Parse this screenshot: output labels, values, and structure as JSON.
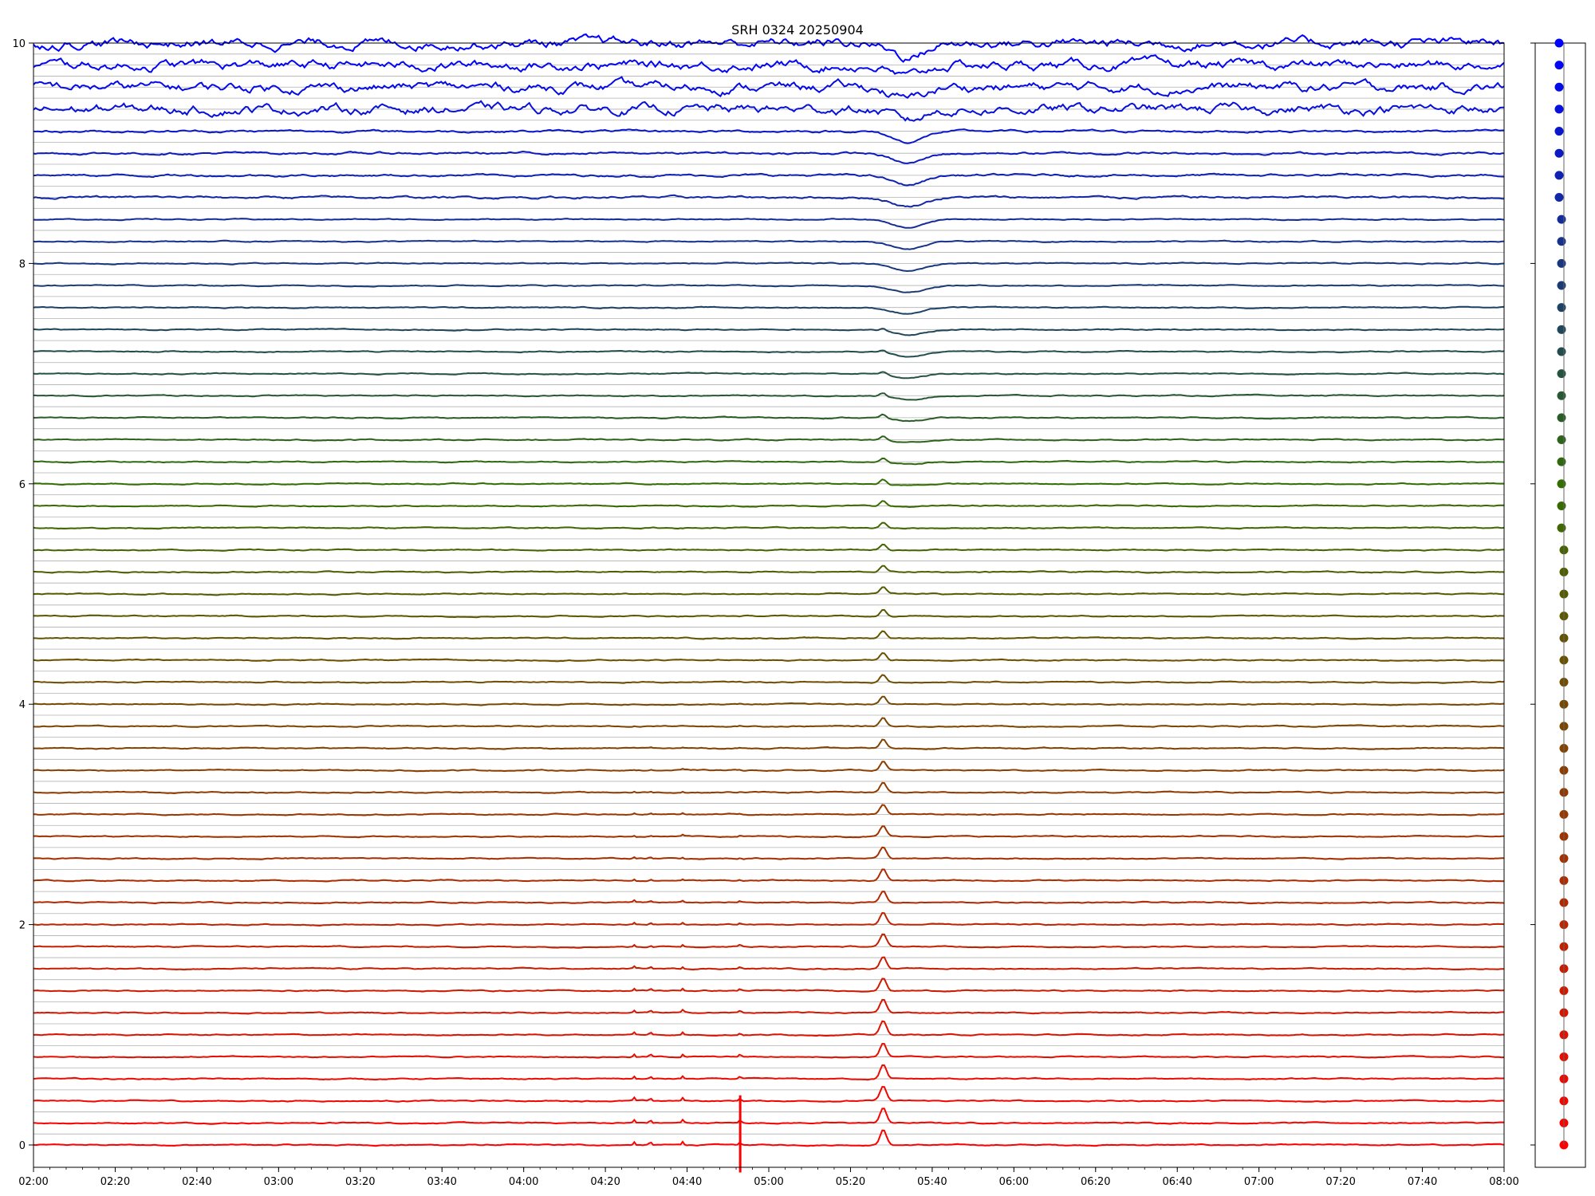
{
  "chart_data": {
    "type": "line",
    "title": "SRH 0324 20250904",
    "xlabel": "",
    "ylabel": "",
    "x_tick_labels": [
      "02:00",
      "02:20",
      "02:40",
      "03:00",
      "03:20",
      "03:40",
      "04:00",
      "04:20",
      "04:40",
      "05:00",
      "05:20",
      "05:40",
      "06:00",
      "06:20",
      "06:40",
      "07:00",
      "07:20",
      "07:40",
      "08:00"
    ],
    "x_range_minutes": [
      120,
      480
    ],
    "y_tick_labels": [
      "0",
      "2",
      "4",
      "6",
      "8",
      "10"
    ],
    "ylim": [
      0,
      10
    ],
    "n_traces": 51,
    "trace_spacing": 0.2,
    "grid": "horizontal baseline per trace",
    "legend": "right-side color strip",
    "colors": {
      "top": "#0000ff",
      "bottom": "#ff0000",
      "grid": "#b0b0b0"
    },
    "features": {
      "event_peak_time": "05:28",
      "dip_time": "05:34",
      "spike_time": "04:53",
      "small_spikes": [
        "04:27",
        "04:31",
        "04:39",
        "04:53"
      ]
    }
  }
}
